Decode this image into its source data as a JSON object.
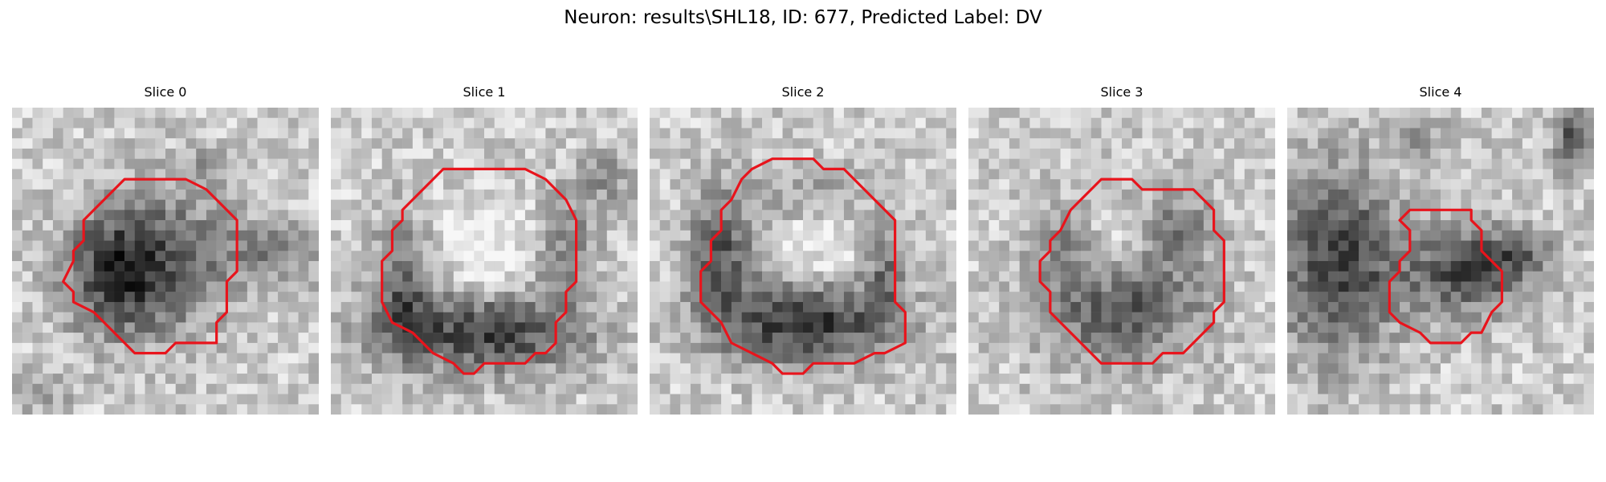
{
  "figure": {
    "title": "Neuron: results\\SHL18, ID: 677, Predicted Label: DV"
  },
  "panels": [
    {
      "title": "Slice 0"
    },
    {
      "title": "Slice 1"
    },
    {
      "title": "Slice 2"
    },
    {
      "title": "Slice 3"
    },
    {
      "title": "Slice 4"
    }
  ],
  "colors": {
    "contour": "#e8141c",
    "grayscale_cmap": "gray"
  }
}
